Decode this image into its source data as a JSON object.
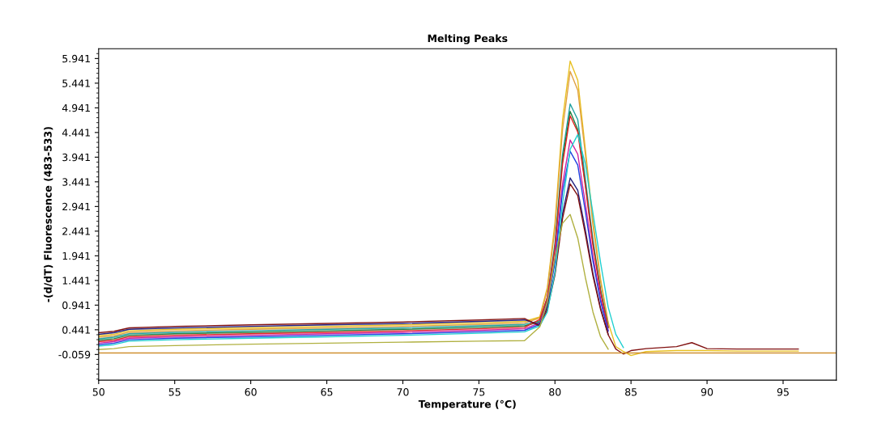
{
  "chart_data": {
    "type": "line",
    "title": "Melting Peaks",
    "xlabel": "Temperature (°C)",
    "ylabel": "-(d/dT) Fluorescence (483-533)",
    "x": [
      50,
      51,
      52,
      55,
      60,
      65,
      70,
      75,
      78,
      79,
      79.5,
      80,
      80.5,
      81,
      81.5,
      82,
      82.5,
      83,
      83.5,
      84,
      84.5,
      85,
      86,
      88,
      89,
      90,
      92,
      96
    ],
    "series": [
      {
        "color": "#e8c020",
        "values": [
          0.32,
          0.35,
          0.42,
          0.45,
          0.48,
          0.51,
          0.54,
          0.58,
          0.61,
          0.7,
          1.3,
          2.6,
          4.7,
          5.89,
          5.5,
          4.1,
          2.65,
          1.47,
          0.59,
          0.1,
          0.0,
          -0.08,
          0.0,
          0.02,
          0.02,
          0.02,
          0.01,
          0.01
        ]
      },
      {
        "color": "#e0a040",
        "values": [
          0.29,
          0.32,
          0.39,
          0.42,
          0.45,
          0.48,
          0.51,
          0.55,
          0.58,
          0.68,
          1.25,
          2.5,
          4.5,
          5.68,
          5.3,
          4.0,
          2.56,
          1.42,
          0.57,
          null,
          null,
          null,
          null,
          null,
          null,
          null,
          null,
          null
        ]
      },
      {
        "color": "#20a0a0",
        "values": [
          0.26,
          0.29,
          0.36,
          0.39,
          0.42,
          0.45,
          0.48,
          0.52,
          0.55,
          0.62,
          1.1,
          2.2,
          4.0,
          5.02,
          4.7,
          3.5,
          2.26,
          1.26,
          0.5,
          null,
          null,
          null,
          null,
          null,
          null,
          null,
          null,
          null
        ]
      },
      {
        "color": "#208040",
        "values": [
          0.23,
          0.26,
          0.33,
          0.36,
          0.39,
          0.42,
          0.45,
          0.49,
          0.52,
          0.6,
          1.05,
          2.1,
          3.9,
          4.87,
          4.5,
          3.4,
          2.2,
          1.22,
          0.49,
          null,
          null,
          null,
          null,
          null,
          null,
          null,
          null,
          null
        ]
      },
      {
        "color": "#e02020",
        "values": [
          0.2,
          0.23,
          0.3,
          0.33,
          0.36,
          0.39,
          0.42,
          0.46,
          0.49,
          0.65,
          1.1,
          2.1,
          3.8,
          4.78,
          4.45,
          3.35,
          2.15,
          1.2,
          0.48,
          null,
          null,
          null,
          null,
          null,
          null,
          null,
          null,
          null
        ]
      },
      {
        "color": "#d020a0",
        "values": [
          0.17,
          0.2,
          0.27,
          0.3,
          0.33,
          0.36,
          0.39,
          0.43,
          0.46,
          0.58,
          1.0,
          1.9,
          3.4,
          4.29,
          4.0,
          3.0,
          1.93,
          1.07,
          0.43,
          null,
          null,
          null,
          null,
          null,
          null,
          null,
          null,
          null
        ]
      },
      {
        "color": "#2040e0",
        "values": [
          0.14,
          0.17,
          0.24,
          0.27,
          0.3,
          0.33,
          0.36,
          0.4,
          0.43,
          0.55,
          0.95,
          1.8,
          3.25,
          4.06,
          3.78,
          2.84,
          1.83,
          1.02,
          0.41,
          null,
          null,
          null,
          null,
          null,
          null,
          null,
          null,
          null
        ]
      },
      {
        "color": "#202080",
        "values": [
          0.35,
          0.38,
          0.45,
          0.48,
          0.51,
          0.54,
          0.57,
          0.61,
          0.64,
          0.55,
          0.9,
          1.6,
          2.8,
          3.52,
          3.27,
          2.46,
          1.58,
          0.88,
          0.35,
          null,
          null,
          null,
          null,
          null,
          null,
          null,
          null,
          null
        ]
      },
      {
        "color": "#801010",
        "values": [
          0.38,
          0.41,
          0.48,
          0.51,
          0.54,
          0.57,
          0.6,
          0.64,
          0.67,
          0.52,
          0.85,
          1.55,
          2.7,
          3.4,
          3.16,
          2.38,
          1.53,
          0.85,
          0.34,
          0.05,
          -0.05,
          0.02,
          0.06,
          0.1,
          0.18,
          0.06,
          0.05,
          0.05
        ]
      },
      {
        "color": "#20d0d0",
        "values": [
          0.11,
          0.14,
          0.21,
          0.24,
          0.27,
          0.3,
          0.33,
          0.37,
          0.4,
          0.52,
          0.8,
          1.6,
          3.0,
          4.1,
          4.4,
          3.8,
          2.8,
          1.8,
          0.9,
          0.35,
          0.08,
          null,
          null,
          null,
          null,
          null,
          null,
          null
        ]
      },
      {
        "color": "#b0b040",
        "values": [
          0.04,
          0.06,
          0.1,
          0.12,
          0.15,
          0.17,
          0.19,
          0.21,
          0.22,
          0.5,
          1.0,
          1.9,
          2.6,
          2.78,
          2.3,
          1.5,
          0.8,
          0.3,
          0.05,
          null,
          null,
          null,
          null,
          null,
          null,
          null,
          null,
          null
        ]
      },
      {
        "color": "#d09030",
        "x": [
          50,
          98.5
        ],
        "values": [
          -0.03,
          -0.03
        ]
      }
    ],
    "xlim": [
      50,
      98.5
    ],
    "ylim": [
      -0.58,
      6.14
    ],
    "xticks": [
      50,
      55,
      60,
      65,
      70,
      75,
      80,
      85,
      90,
      95
    ],
    "yticks": [
      -0.059,
      0.441,
      0.941,
      1.441,
      1.941,
      2.441,
      2.941,
      3.441,
      3.941,
      4.441,
      4.941,
      5.441,
      5.941
    ],
    "grid": false,
    "legend": false,
    "marker": "none",
    "line_style": "solid"
  }
}
